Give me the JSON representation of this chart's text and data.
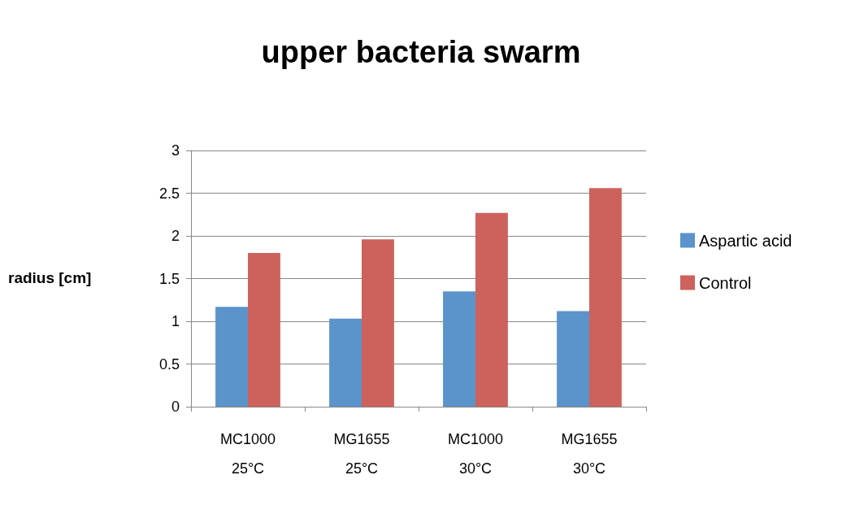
{
  "chart_data": {
    "type": "bar",
    "title": "upper bacteria swarm",
    "ylabel": "radius [cm]",
    "categories": [
      "MC1000\n25°C",
      "MG1655\n25°C",
      "MC1000\n30°C",
      "MG1655\n30°C"
    ],
    "series": [
      {
        "name": "Aspartic acid",
        "color": "#5b93cb",
        "values": [
          1.17,
          1.03,
          1.35,
          1.12
        ]
      },
      {
        "name": "Control",
        "color": "#cd625c",
        "values": [
          1.8,
          1.96,
          2.27,
          2.56
        ]
      }
    ],
    "ylim": [
      0,
      3
    ],
    "yticks": [
      0,
      0.5,
      1,
      1.5,
      2,
      2.5,
      3
    ],
    "grid": "y",
    "legend": "right"
  }
}
